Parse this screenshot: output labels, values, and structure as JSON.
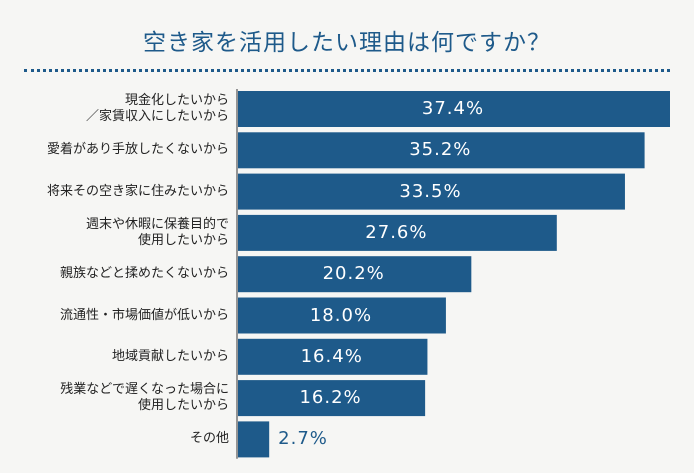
{
  "title": "空き家を活用したい理由は何ですか？",
  "chart_data": {
    "type": "bar",
    "orientation": "horizontal",
    "title": "空き家を活用したい理由は何ですか？",
    "xlabel": "",
    "ylabel": "",
    "categories": [
      "現金化したいから\n／家賃収入にしたいから",
      "愛着があり手放したくないから",
      "将来その空き家に住みたいから",
      "週末や休暇に保養目的で\n使用したいから",
      "親族などと揉めたくないから",
      "流通性・市場価値が低いから",
      "地域貢献したいから",
      "残業などで遅くなった場合に\n使用したいから",
      "その他"
    ],
    "values": [
      37.4,
      35.2,
      33.5,
      27.6,
      20.2,
      18.0,
      16.4,
      16.2,
      2.7
    ],
    "value_labels": [
      "37.4%",
      "35.2%",
      "33.5%",
      "27.6%",
      "20.2%",
      "18.0%",
      "16.4%",
      "16.2%",
      "2.7%"
    ],
    "unit": "%",
    "xlim": [
      0,
      37.4
    ],
    "grid": false,
    "bar_color": "#1e5a8a"
  }
}
